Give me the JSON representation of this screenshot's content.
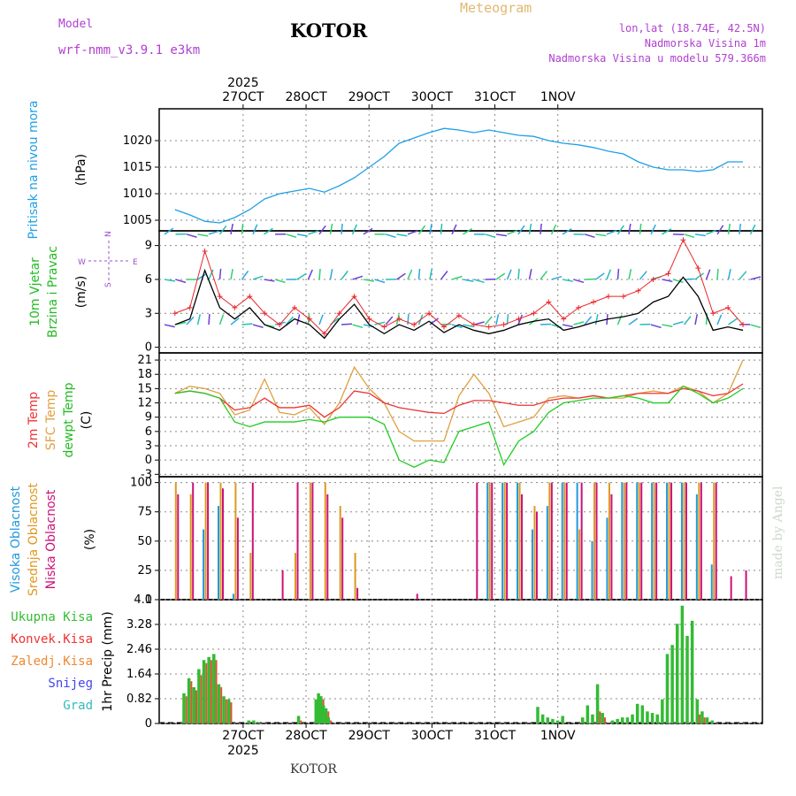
{
  "header": {
    "model_label": "Model",
    "model_name": "wrf-nmm_v3.9.1  e3km",
    "station": "KOTOR",
    "meteogram": "Meteogram",
    "lonlat": "lon,lat (18.74E, 42.5N)",
    "elevation": "Nadmorska Visina 1m",
    "model_elevation": "Nadmorska Visina u modelu 579.366m",
    "footer_station": "KOTOR",
    "credit": "made by Angel"
  },
  "colors": {
    "pressure": "#1ea0e6",
    "wind_mean": "#000000",
    "gust": "#e8262a",
    "t2m": "#ee3333",
    "sfc": "#e0a040",
    "dewpt": "#22cc22",
    "cloud_high": "#2299dd",
    "cloud_mid": "#dd9922",
    "cloud_low": "#cc1177",
    "precip_total": "#33bb33",
    "precip_conv": "#dd5533",
    "axis_label_wind": "#22bb22",
    "axis_label_temp2m": "#ee3333",
    "axis_label_sfc": "#e0a040",
    "axis_label_dew": "#22bb22"
  },
  "time_axis": {
    "days": [
      "27OCT",
      "28OCT",
      "29OCT",
      "30OCT",
      "31OCT",
      "1NOV"
    ],
    "year": "2025"
  },
  "compass": {
    "w": "W",
    "e": "E",
    "n": "N",
    "s": "S"
  },
  "chart_data": [
    {
      "type": "line",
      "title": "Pritisak na nivou mora",
      "ylabel": "(hPa)",
      "ylim": [
        1003,
        1026
      ],
      "yticks": [
        "1005",
        "1010",
        "1015",
        "1020"
      ],
      "x_hours": [
        0,
        6,
        12,
        18,
        24,
        30,
        36,
        42,
        48,
        54,
        60,
        66,
        72,
        78,
        84,
        90,
        96,
        102,
        108,
        114,
        120,
        126,
        132,
        138,
        144,
        150,
        156,
        162,
        168,
        174,
        180,
        186,
        192,
        198,
        204,
        210,
        216,
        222,
        228
      ],
      "series": [
        {
          "name": "Pritisak",
          "values": [
            1007,
            1006,
            1004.8,
            1004.5,
            1005.5,
            1007,
            1009,
            1010,
            1010.5,
            1011,
            1010.3,
            1011.5,
            1013,
            1015,
            1017,
            1019.5,
            1020.5,
            1021.5,
            1022.3,
            1022,
            1021.5,
            1022,
            1021.5,
            1021,
            1020.8,
            1020,
            1019.5,
            1019.2,
            1018.7,
            1018,
            1017.5,
            1016,
            1015,
            1014.5,
            1014.5,
            1014.2,
            1014.5,
            1016,
            1016
          ]
        }
      ]
    },
    {
      "type": "line",
      "title": "10m Vjetar",
      "subtitle": "Brzina i Pravac",
      "ylabel": "(m/s)",
      "ylim": [
        -0.5,
        10.3
      ],
      "yticks": [
        "0",
        "3",
        "6",
        "9"
      ],
      "x_hours": [
        0,
        6,
        12,
        18,
        24,
        30,
        36,
        42,
        48,
        54,
        60,
        66,
        72,
        78,
        84,
        90,
        96,
        102,
        108,
        114,
        120,
        126,
        132,
        138,
        144,
        150,
        156,
        162,
        168,
        174,
        180,
        186,
        192,
        198,
        204,
        210,
        216,
        222,
        228
      ],
      "series": [
        {
          "name": "Brzina",
          "values": [
            2,
            2.5,
            6.8,
            3.5,
            2.5,
            3.5,
            2,
            1.5,
            2.5,
            2,
            0.8,
            2.5,
            3.8,
            2,
            1.2,
            2,
            1.5,
            2.3,
            1.3,
            2,
            1.5,
            1.2,
            1.5,
            2,
            2.3,
            2.5,
            1.5,
            1.8,
            2.2,
            2.5,
            2.7,
            3,
            4,
            4.5,
            6.2,
            4.5,
            1.5,
            1.8,
            1.5
          ]
        },
        {
          "name": "Udari",
          "values": [
            3,
            3.5,
            8.5,
            4.5,
            3.5,
            4.5,
            3,
            2,
            3.5,
            2.5,
            1.2,
            3,
            4.5,
            2.5,
            1.8,
            2.5,
            2,
            3,
            1.8,
            2.8,
            2,
            1.8,
            2,
            2.5,
            3,
            4,
            2.5,
            3.5,
            4,
            4.5,
            4.5,
            5,
            6,
            6.5,
            9.5,
            7,
            3,
            3.5,
            2
          ]
        }
      ]
    },
    {
      "type": "line",
      "title": "2m Temp",
      "subtitle": "SFC Temp",
      "subtitle2": "dewpt Temp",
      "ylabel": "(C)",
      "ylim": [
        -3.5,
        22.5
      ],
      "yticks": [
        "-3",
        "0",
        "3",
        "6",
        "9",
        "12",
        "15",
        "18",
        "21"
      ],
      "x_hours": [
        0,
        6,
        12,
        18,
        24,
        30,
        36,
        42,
        48,
        54,
        60,
        66,
        72,
        78,
        84,
        90,
        96,
        102,
        108,
        114,
        120,
        126,
        132,
        138,
        144,
        150,
        156,
        162,
        168,
        174,
        180,
        186,
        192,
        198,
        204,
        210,
        216,
        222,
        228
      ],
      "series": [
        {
          "name": "2m Temp",
          "values": [
            14,
            14.5,
            14,
            13,
            10.5,
            11,
            13,
            11,
            11,
            11.5,
            9,
            11,
            14.5,
            14,
            12,
            11,
            10.5,
            10,
            9.8,
            11.5,
            12.5,
            12.5,
            12,
            11.5,
            11.5,
            12.5,
            13,
            13,
            13.5,
            13,
            13.5,
            14,
            14,
            14,
            15,
            14.5,
            13.5,
            14,
            16
          ]
        },
        {
          "name": "SFC Temp",
          "values": [
            14,
            15.5,
            15,
            14,
            9.5,
            10.5,
            17,
            10,
            9.5,
            11,
            7.5,
            12,
            19.5,
            15,
            12,
            6,
            4,
            4,
            4,
            13.5,
            18,
            14,
            7,
            8,
            9,
            13,
            13.5,
            13,
            13.5,
            13,
            13,
            14,
            14.5,
            14,
            15.5,
            14.5,
            12,
            14,
            21
          ]
        },
        {
          "name": "dewpt Temp",
          "values": [
            14,
            14.5,
            14,
            13,
            8,
            7,
            8,
            8,
            8,
            8.5,
            8,
            9,
            9,
            9,
            7.5,
            0,
            -1.5,
            0,
            -0.5,
            6,
            7,
            8,
            -1,
            4,
            6,
            10,
            12,
            12.5,
            13,
            13,
            13.5,
            13,
            12,
            12,
            15.5,
            14,
            12,
            13,
            15
          ]
        }
      ]
    },
    {
      "type": "bar",
      "title": "Visoka Oblacnost",
      "subtitle": "Srednja Oblacnost",
      "subtitle2": "Niska Oblacnost",
      "ylabel": "(%)",
      "ylim": [
        0,
        105
      ],
      "yticks": [
        "0",
        "25",
        "50",
        "75",
        "100"
      ],
      "x_hours": [
        0,
        6,
        12,
        18,
        24,
        30,
        36,
        42,
        48,
        54,
        60,
        66,
        72,
        78,
        84,
        90,
        96,
        102,
        108,
        114,
        120,
        126,
        132,
        138,
        144,
        150,
        156,
        162,
        168,
        174,
        180,
        186,
        192,
        198,
        204,
        210,
        216,
        222,
        228
      ],
      "series": [
        {
          "name": "Visoka",
          "values": [
            0,
            0,
            60,
            80,
            5,
            0,
            0,
            0,
            0,
            0,
            0,
            0,
            0,
            0,
            0,
            0,
            0,
            0,
            0,
            0,
            0,
            100,
            100,
            100,
            60,
            80,
            100,
            100,
            50,
            70,
            100,
            100,
            100,
            100,
            100,
            90,
            30,
            0,
            0
          ]
        },
        {
          "name": "Srednja",
          "values": [
            100,
            90,
            100,
            100,
            100,
            40,
            0,
            0,
            40,
            100,
            100,
            80,
            40,
            0,
            0,
            0,
            0,
            0,
            0,
            0,
            0,
            100,
            100,
            100,
            80,
            100,
            100,
            60,
            100,
            100,
            100,
            100,
            100,
            100,
            100,
            100,
            100,
            0,
            0
          ]
        },
        {
          "name": "Niska",
          "values": [
            90,
            100,
            100,
            95,
            70,
            100,
            0,
            25,
            100,
            100,
            90,
            70,
            10,
            0,
            0,
            0,
            5,
            0,
            0,
            0,
            100,
            100,
            100,
            90,
            75,
            100,
            100,
            100,
            100,
            90,
            100,
            100,
            100,
            100,
            100,
            100,
            100,
            20,
            25
          ]
        }
      ]
    },
    {
      "type": "bar",
      "title": "Ukupna Kisa",
      "legend": [
        "Ukupna Kisa",
        "Konvek.Kisa",
        "Zaledj.Kisa",
        "Snijeg",
        "Grad"
      ],
      "ylabel": "1hr Precip (mm)",
      "ylim": [
        0,
        4.1
      ],
      "yticks": [
        "0",
        "0.82",
        "1.64",
        "2.46",
        "3.28",
        "4.1"
      ],
      "x_hours": [
        3,
        5,
        7,
        9,
        11,
        13,
        15,
        17,
        19,
        21,
        29,
        31,
        33,
        49,
        56,
        57,
        58,
        59,
        60,
        61,
        145,
        147,
        149,
        151,
        153,
        155,
        163,
        165,
        167,
        169,
        171,
        175,
        177,
        179,
        181,
        183,
        185,
        187,
        189,
        191,
        193,
        195,
        197,
        199,
        201,
        203,
        205,
        207,
        209,
        211,
        213,
        215
      ],
      "series": [
        {
          "name": "Ukupna",
          "values": [
            1,
            1.5,
            1.2,
            1.8,
            2.1,
            2.2,
            2.3,
            1.3,
            0.9,
            0.8,
            0.1,
            0.1,
            0.05,
            0.25,
            0.8,
            1,
            0.9,
            0.6,
            0.5,
            0.2,
            0.55,
            0.3,
            0.2,
            0.15,
            0.1,
            0.25,
            0.2,
            0.6,
            0.3,
            1.3,
            0.35,
            0.1,
            0.15,
            0.2,
            0.2,
            0.3,
            0.65,
            0.6,
            0.4,
            0.35,
            0.3,
            0.8,
            2.3,
            2.6,
            3.3,
            3.9,
            2.9,
            3.4,
            0.8,
            0.4,
            0.2,
            0.1
          ]
        },
        {
          "name": "Konvek",
          "values": [
            0.9,
            1.4,
            1.1,
            1.6,
            2,
            2.1,
            2.1,
            1.2,
            0.8,
            0.7,
            0,
            0,
            0,
            0.1,
            0.7,
            0.9,
            0.8,
            0.5,
            0.4,
            0.1,
            0,
            0,
            0,
            0,
            0,
            0,
            0,
            0,
            0,
            0.4,
            0.2,
            0,
            0,
            0,
            0,
            0,
            0,
            0,
            0,
            0,
            0,
            0,
            0,
            0,
            0,
            0,
            0,
            0,
            0.3,
            0.2,
            0,
            0
          ]
        }
      ]
    }
  ]
}
